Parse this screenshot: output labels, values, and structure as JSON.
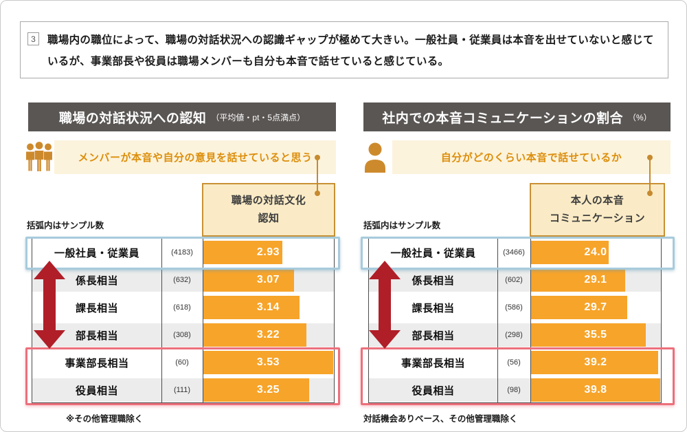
{
  "summary": {
    "number": "3",
    "text": "職場内の職位によって、職場の対話状況への認識ギャップが極めて大きい。一般社員・従業員は本音を出せていないと感じているが、事業部長や役員は職場メンバーも自分も本音で話せていると感じている。"
  },
  "panels": [
    {
      "title": "職場の対話状況への認知",
      "title_note": "（平均値・pt・5点満点）",
      "icon": "three-people-icon",
      "annotation": "メンバーが本音や自分の意見を話せていると思う",
      "sample_note": "括弧内はサンプル数",
      "column_header_line1": "職場の対話文化",
      "column_header_line2": "認知",
      "footnote": "※その他管理職除く",
      "axis": {
        "min": 2.0,
        "max": 3.55
      },
      "highlights": {
        "blue_rows": [
          0
        ],
        "red_rows": [
          4,
          5
        ]
      },
      "rows": [
        {
          "label": "一般社員・従業員",
          "sample": "(4183)",
          "value": 2.93,
          "display": "2.93"
        },
        {
          "label": "係長相当",
          "sample": "(632)",
          "value": 3.07,
          "display": "3.07"
        },
        {
          "label": "課長相当",
          "sample": "(618)",
          "value": 3.14,
          "display": "3.14"
        },
        {
          "label": "部長相当",
          "sample": "(308)",
          "value": 3.22,
          "display": "3.22"
        },
        {
          "label": "事業部長相当",
          "sample": "(60)",
          "value": 3.53,
          "display": "3.53"
        },
        {
          "label": "役員相当",
          "sample": "(111)",
          "value": 3.25,
          "display": "3.25"
        }
      ]
    },
    {
      "title": "社内での本音コミュニケーションの割合",
      "title_note": "（%）",
      "icon": "person-icon",
      "annotation": "自分がどのくらい本音で話せているか",
      "sample_note": "括弧内はサンプル数",
      "column_header_line1": "本人の本音",
      "column_header_line2": "コミュニケーション",
      "footnote": "対話機会ありベース、その他管理職除く",
      "axis": {
        "min": 0,
        "max": 40.3
      },
      "highlights": {
        "blue_rows": [
          0
        ],
        "red_rows": [
          4,
          5
        ]
      },
      "rows": [
        {
          "label": "一般社員・従業員",
          "sample": "(3466)",
          "value": 24.0,
          "display": "24.0"
        },
        {
          "label": "係長相当",
          "sample": "(602)",
          "value": 29.1,
          "display": "29.1"
        },
        {
          "label": "課長相当",
          "sample": "(586)",
          "value": 29.7,
          "display": "29.7"
        },
        {
          "label": "部長相当",
          "sample": "(298)",
          "value": 35.5,
          "display": "35.5"
        },
        {
          "label": "事業部長相当",
          "sample": "(56)",
          "value": 39.2,
          "display": "39.2"
        },
        {
          "label": "役員相当",
          "sample": "(98)",
          "value": 39.8,
          "display": "39.8"
        }
      ]
    }
  ],
  "colors": {
    "bar_orange": "#f7a42a",
    "icon_orange": "#cd8a2d",
    "annotation_bg": "#fcf3dc",
    "annotation_text": "#dc8e0b",
    "column_header_bg": "#faebc6",
    "column_header_border": "#c99133",
    "title_bar_bg": "#5a5654",
    "highlight_blue": "#a7cbdc",
    "highlight_red": "#ec6f7b",
    "arrow_red": "#b01e28",
    "row_alt_gray": "#ececec"
  },
  "chart_data": [
    {
      "type": "bar",
      "orientation": "horizontal",
      "title": "職場の対話状況への認知（平均値・pt・5点満点）",
      "series_label": "職場の対話文化認知",
      "categories": [
        "一般社員・従業員",
        "係長相当",
        "課長相当",
        "部長相当",
        "事業部長相当",
        "役員相当"
      ],
      "values": [
        2.93,
        3.07,
        3.14,
        3.22,
        3.53,
        3.25
      ],
      "sample_sizes": [
        4183,
        632,
        618,
        308,
        60,
        111
      ],
      "xlim": [
        2.0,
        3.55
      ],
      "grid": false,
      "legend_position": "none",
      "annotations": [
        "メンバーが本音や自分の意見を話せていると思う",
        "※その他管理職除く"
      ]
    },
    {
      "type": "bar",
      "orientation": "horizontal",
      "title": "社内での本音コミュニケーションの割合（%）",
      "series_label": "本人の本音コミュニケーション",
      "categories": [
        "一般社員・従業員",
        "係長相当",
        "課長相当",
        "部長相当",
        "事業部長相当",
        "役員相当"
      ],
      "values": [
        24.0,
        29.1,
        29.7,
        35.5,
        39.2,
        39.8
      ],
      "sample_sizes": [
        3466,
        602,
        586,
        298,
        56,
        98
      ],
      "xlim": [
        0,
        40.3
      ],
      "grid": false,
      "legend_position": "none",
      "annotations": [
        "自分がどのくらい本音で話せているか",
        "対話機会ありベース、その他管理職除く"
      ]
    }
  ]
}
